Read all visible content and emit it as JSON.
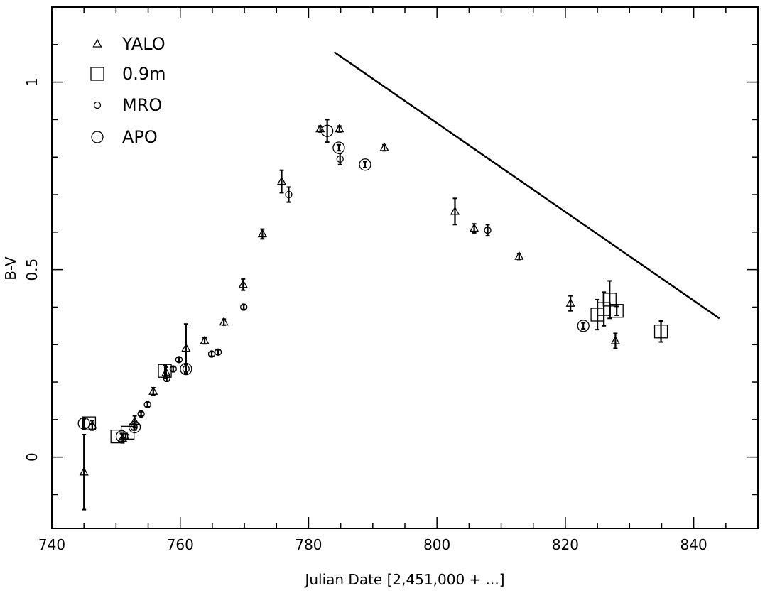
{
  "chart_data": {
    "type": "scatter",
    "xlabel": "Julian Date [2,451,000 + ...]",
    "ylabel": "B-V",
    "xlim": [
      740,
      850
    ],
    "ylim": [
      -0.19,
      1.2
    ],
    "x_ticks": [
      740,
      760,
      780,
      800,
      820,
      840
    ],
    "x_tick_labels": [
      "740",
      "760",
      "780",
      "800",
      "820",
      "840"
    ],
    "y_ticks": [
      0,
      0.5,
      1
    ],
    "y_tick_labels": [
      "0",
      "0.5",
      "1"
    ],
    "legend_position": "top-left",
    "series": [
      {
        "name": "YALO",
        "marker": "triangle",
        "points": [
          {
            "x": 745.0,
            "y": -0.04,
            "err": 0.1
          },
          {
            "x": 746.3,
            "y": 0.085,
            "err": 0.012
          },
          {
            "x": 751.0,
            "y": 0.05,
            "err": 0.012
          },
          {
            "x": 752.9,
            "y": 0.095,
            "err": 0.015
          },
          {
            "x": 755.8,
            "y": 0.175,
            "err": 0.01
          },
          {
            "x": 757.8,
            "y": 0.225,
            "err": 0.015
          },
          {
            "x": 760.9,
            "y": 0.29,
            "err": 0.065
          },
          {
            "x": 763.8,
            "y": 0.31,
            "err": 0.008
          },
          {
            "x": 766.8,
            "y": 0.36,
            "err": 0.008
          },
          {
            "x": 769.8,
            "y": 0.46,
            "err": 0.015
          },
          {
            "x": 772.8,
            "y": 0.595,
            "err": 0.013
          },
          {
            "x": 775.8,
            "y": 0.735,
            "err": 0.03
          },
          {
            "x": 781.8,
            "y": 0.875,
            "err": 0.008
          },
          {
            "x": 784.8,
            "y": 0.875,
            "err": 0.008
          },
          {
            "x": 791.8,
            "y": 0.825,
            "err": 0.008
          },
          {
            "x": 802.8,
            "y": 0.655,
            "err": 0.035
          },
          {
            "x": 805.8,
            "y": 0.61,
            "err": 0.012
          },
          {
            "x": 812.8,
            "y": 0.535,
            "err": 0.008
          },
          {
            "x": 820.8,
            "y": 0.41,
            "err": 0.02
          },
          {
            "x": 827.8,
            "y": 0.31,
            "err": 0.02
          }
        ]
      },
      {
        "name": "0.9m",
        "marker": "square",
        "points": [
          {
            "x": 745.8,
            "y": 0.09,
            "err": 0.0
          },
          {
            "x": 750.2,
            "y": 0.055,
            "err": 0.0
          },
          {
            "x": 751.8,
            "y": 0.065,
            "err": 0.0
          },
          {
            "x": 757.6,
            "y": 0.23,
            "err": 0.015
          },
          {
            "x": 825.0,
            "y": 0.38,
            "err": 0.04
          },
          {
            "x": 826.0,
            "y": 0.395,
            "err": 0.045
          },
          {
            "x": 826.9,
            "y": 0.42,
            "err": 0.05
          },
          {
            "x": 828.0,
            "y": 0.39,
            "err": 0.012
          },
          {
            "x": 834.9,
            "y": 0.335,
            "err": 0.028
          }
        ]
      },
      {
        "name": "MRO",
        "marker": "small-circle",
        "points": [
          {
            "x": 746.3,
            "y": 0.08,
            "err": 0.008
          },
          {
            "x": 751.5,
            "y": 0.055,
            "err": 0.008
          },
          {
            "x": 752.8,
            "y": 0.08,
            "err": 0.008
          },
          {
            "x": 753.9,
            "y": 0.115,
            "err": 0.006
          },
          {
            "x": 754.9,
            "y": 0.14,
            "err": 0.006
          },
          {
            "x": 757.9,
            "y": 0.21,
            "err": 0.008
          },
          {
            "x": 758.9,
            "y": 0.235,
            "err": 0.006
          },
          {
            "x": 759.8,
            "y": 0.26,
            "err": 0.006
          },
          {
            "x": 760.9,
            "y": 0.235,
            "err": 0.012
          },
          {
            "x": 764.9,
            "y": 0.275,
            "err": 0.006
          },
          {
            "x": 765.9,
            "y": 0.28,
            "err": 0.006
          },
          {
            "x": 769.9,
            "y": 0.4,
            "err": 0.006
          },
          {
            "x": 776.9,
            "y": 0.7,
            "err": 0.02
          },
          {
            "x": 784.9,
            "y": 0.795,
            "err": 0.015
          },
          {
            "x": 807.9,
            "y": 0.605,
            "err": 0.015
          }
        ]
      },
      {
        "name": "APO",
        "marker": "large-circle",
        "points": [
          {
            "x": 745.0,
            "y": 0.09,
            "err": 0.012
          },
          {
            "x": 750.9,
            "y": 0.055,
            "err": 0.008
          },
          {
            "x": 752.9,
            "y": 0.08,
            "err": 0.008
          },
          {
            "x": 760.9,
            "y": 0.235,
            "err": 0.012
          },
          {
            "x": 782.9,
            "y": 0.87,
            "err": 0.03
          },
          {
            "x": 784.7,
            "y": 0.825,
            "err": 0.008
          },
          {
            "x": 788.8,
            "y": 0.78,
            "err": 0.008
          },
          {
            "x": 822.8,
            "y": 0.35,
            "err": 0.008
          }
        ]
      }
    ],
    "reference_line": {
      "x": [
        784,
        844
      ],
      "y": [
        1.08,
        0.37
      ]
    }
  }
}
